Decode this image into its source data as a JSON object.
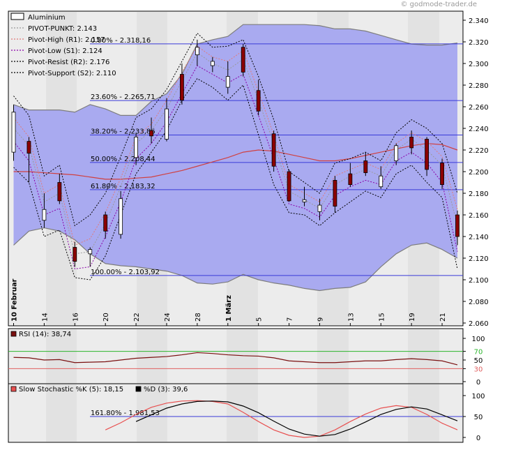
{
  "watermark": "© godmode-trader.de",
  "chart_data": {
    "type": "candlestick",
    "main": {
      "ylim": [
        2.06,
        2.34
      ],
      "yticks": [
        "2.340",
        "2.320",
        "2.300",
        "2.280",
        "2.260",
        "2.240",
        "2.220",
        "2.200",
        "2.180",
        "2.160",
        "2.140",
        "2.120",
        "2.100",
        "2.080",
        "2.060"
      ],
      "xticks": [
        {
          "i": 0,
          "label": "10 Februar"
        },
        {
          "i": 2,
          "label": "14"
        },
        {
          "i": 4,
          "label": "16"
        },
        {
          "i": 6,
          "label": "20"
        },
        {
          "i": 8,
          "label": "22"
        },
        {
          "i": 10,
          "label": "24"
        },
        {
          "i": 12,
          "label": "28"
        },
        {
          "i": 14,
          "label": "1 März"
        },
        {
          "i": 16,
          "label": "5"
        },
        {
          "i": 18,
          "label": "7"
        },
        {
          "i": 20,
          "label": "9"
        },
        {
          "i": 22,
          "label": "13"
        },
        {
          "i": 24,
          "label": "15"
        },
        {
          "i": 26,
          "label": "19"
        },
        {
          "i": 28,
          "label": "21"
        }
      ],
      "legend": [
        {
          "label": "Aluminium",
          "value": "",
          "style": "box",
          "color": "#000000"
        },
        {
          "label": "PIVOT-PUNKT:",
          "value": "2.143",
          "style": "dot",
          "color": "#999999"
        },
        {
          "label": "Pivot-High (R1):",
          "value": "2.157",
          "style": "dot",
          "color": "#e07a7a"
        },
        {
          "label": "Pivot-Low (S1):",
          "value": "2.124",
          "style": "dot",
          "color": "#8a00a8"
        },
        {
          "label": "Pivot-Resist (R2):",
          "value": "2.176",
          "style": "dot",
          "color": "#000000"
        },
        {
          "label": "Pivot-Support (S2):",
          "value": "2.110",
          "style": "dot",
          "color": "#000000"
        }
      ],
      "fib_levels": [
        {
          "label": "0.00% - 2.318,16",
          "value": 2.31816
        },
        {
          "label": "23.60% - 2.265,71",
          "value": 2.26571
        },
        {
          "label": "38.20% - 2.233,86",
          "value": 2.23386
        },
        {
          "label": "50.00% - 2.208,44",
          "value": 2.20844
        },
        {
          "label": "61.80% - 2.183,32",
          "value": 2.18332
        },
        {
          "label": "100.00% - 2.103,92",
          "value": 2.10392
        }
      ],
      "candles": [
        {
          "o": 2.218,
          "h": 2.262,
          "l": 2.21,
          "c": 2.255
        },
        {
          "o": 2.228,
          "h": 2.232,
          "l": 2.19,
          "c": 2.217
        },
        {
          "o": 2.155,
          "h": 2.18,
          "l": 2.148,
          "c": 2.165
        },
        {
          "o": 2.19,
          "h": 2.198,
          "l": 2.17,
          "c": 2.173
        },
        {
          "o": 2.13,
          "h": 2.135,
          "l": 2.112,
          "c": 2.117
        },
        {
          "o": 2.124,
          "h": 2.13,
          "l": 2.112,
          "c": 2.128
        },
        {
          "o": 2.16,
          "h": 2.163,
          "l": 2.138,
          "c": 2.145
        },
        {
          "o": 2.142,
          "h": 2.182,
          "l": 2.138,
          "c": 2.175
        },
        {
          "o": 2.213,
          "h": 2.236,
          "l": 2.206,
          "c": 2.232
        },
        {
          "o": 2.238,
          "h": 2.25,
          "l": 2.226,
          "c": 2.233
        },
        {
          "o": 2.23,
          "h": 2.268,
          "l": 2.228,
          "c": 2.258
        },
        {
          "o": 2.29,
          "h": 2.3,
          "l": 2.262,
          "c": 2.266
        },
        {
          "o": 2.308,
          "h": 2.322,
          "l": 2.298,
          "c": 2.315
        },
        {
          "o": 2.298,
          "h": 2.306,
          "l": 2.292,
          "c": 2.302
        },
        {
          "o": 2.278,
          "h": 2.302,
          "l": 2.272,
          "c": 2.288
        },
        {
          "o": 2.315,
          "h": 2.318,
          "l": 2.288,
          "c": 2.292
        },
        {
          "o": 2.275,
          "h": 2.285,
          "l": 2.252,
          "c": 2.256
        },
        {
          "o": 2.235,
          "h": 2.238,
          "l": 2.2,
          "c": 2.205
        },
        {
          "o": 2.2,
          "h": 2.202,
          "l": 2.172,
          "c": 2.173
        },
        {
          "o": 2.172,
          "h": 2.186,
          "l": 2.168,
          "c": 2.174
        },
        {
          "o": 2.163,
          "h": 2.175,
          "l": 2.155,
          "c": 2.169
        },
        {
          "o": 2.192,
          "h": 2.196,
          "l": 2.162,
          "c": 2.168
        },
        {
          "o": 2.198,
          "h": 2.208,
          "l": 2.186,
          "c": 2.188
        },
        {
          "o": 2.21,
          "h": 2.218,
          "l": 2.196,
          "c": 2.199
        },
        {
          "o": 2.186,
          "h": 2.205,
          "l": 2.184,
          "c": 2.196
        },
        {
          "o": 2.21,
          "h": 2.226,
          "l": 2.206,
          "c": 2.224
        },
        {
          "o": 2.232,
          "h": 2.238,
          "l": 2.216,
          "c": 2.222
        },
        {
          "o": 2.23,
          "h": 2.232,
          "l": 2.196,
          "c": 2.202
        },
        {
          "o": 2.208,
          "h": 2.212,
          "l": 2.184,
          "c": 2.188
        },
        {
          "o": 2.16,
          "h": 2.164,
          "l": 2.132,
          "c": 2.14
        }
      ],
      "pivot_resist": [
        2.27,
        2.252,
        2.196,
        2.206,
        2.15,
        2.16,
        2.18,
        2.214,
        2.25,
        2.258,
        2.276,
        2.302,
        2.328,
        2.315,
        2.316,
        2.322,
        2.288,
        2.248,
        2.2,
        2.19,
        2.18,
        2.208,
        2.212,
        2.218,
        2.21,
        2.236,
        2.248,
        2.24,
        2.226,
        2.18
      ],
      "pivot_high": [
        2.25,
        2.232,
        2.18,
        2.188,
        2.132,
        2.138,
        2.162,
        2.194,
        2.232,
        2.244,
        2.266,
        2.292,
        2.316,
        2.306,
        2.302,
        2.312,
        2.274,
        2.234,
        2.188,
        2.18,
        2.172,
        2.196,
        2.202,
        2.208,
        2.202,
        2.226,
        2.236,
        2.228,
        2.214,
        2.165
      ],
      "pivot_point": [
        2.24,
        2.224,
        2.172,
        2.18,
        2.124,
        2.126,
        2.152,
        2.186,
        2.226,
        2.238,
        2.258,
        2.284,
        2.31,
        2.3,
        2.294,
        2.304,
        2.266,
        2.226,
        2.182,
        2.174,
        2.166,
        2.188,
        2.196,
        2.202,
        2.196,
        2.22,
        2.23,
        2.22,
        2.206,
        2.15
      ],
      "pivot_low": [
        2.228,
        2.21,
        2.16,
        2.166,
        2.11,
        2.112,
        2.14,
        2.172,
        2.212,
        2.226,
        2.246,
        2.272,
        2.298,
        2.29,
        2.282,
        2.29,
        2.252,
        2.212,
        2.17,
        2.166,
        2.158,
        2.178,
        2.186,
        2.192,
        2.188,
        2.21,
        2.218,
        2.208,
        2.19,
        2.126
      ],
      "pivot_support": [
        2.204,
        2.19,
        2.14,
        2.146,
        2.102,
        2.1,
        2.122,
        2.16,
        2.198,
        2.218,
        2.238,
        2.266,
        2.286,
        2.278,
        2.266,
        2.28,
        2.234,
        2.188,
        2.162,
        2.16,
        2.15,
        2.162,
        2.172,
        2.182,
        2.176,
        2.198,
        2.206,
        2.19,
        2.176,
        2.11
      ],
      "bollinger_upper": [
        2.262,
        2.257,
        2.257,
        2.257,
        2.255,
        2.262,
        2.258,
        2.252,
        2.252,
        2.265,
        2.272,
        2.29,
        2.318,
        2.322,
        2.325,
        2.336,
        2.336,
        2.336,
        2.336,
        2.336,
        2.335,
        2.332,
        2.332,
        2.33,
        2.326,
        2.322,
        2.318,
        2.317,
        2.317,
        2.319
      ],
      "bollinger_lower": [
        2.132,
        2.145,
        2.148,
        2.145,
        2.137,
        2.124,
        2.115,
        2.113,
        2.112,
        2.11,
        2.108,
        2.104,
        2.097,
        2.096,
        2.098,
        2.105,
        2.1,
        2.097,
        2.095,
        2.092,
        2.09,
        2.092,
        2.093,
        2.098,
        2.112,
        2.124,
        2.132,
        2.134,
        2.128,
        2.12
      ],
      "sma": [
        2.2,
        2.2,
        2.199,
        2.198,
        2.197,
        2.195,
        2.193,
        2.193,
        2.194,
        2.195,
        2.198,
        2.201,
        2.205,
        2.209,
        2.213,
        2.218,
        2.22,
        2.219,
        2.216,
        2.213,
        2.21,
        2.21,
        2.212,
        2.215,
        2.218,
        2.221,
        2.224,
        2.226,
        2.225,
        2.22
      ]
    },
    "rsi": {
      "title": "RSI (14): 38,74",
      "ylim": [
        0,
        100
      ],
      "yticks": [
        {
          "v": 100,
          "label": "100",
          "color": "#000000"
        },
        {
          "v": 70,
          "label": "70",
          "color": "#2bb52b"
        },
        {
          "v": 50,
          "label": "50",
          "color": "#000000"
        },
        {
          "v": 30,
          "label": "30",
          "color": "#e06060"
        },
        {
          "v": 0,
          "label": "0",
          "color": "#000000"
        }
      ],
      "values": [
        56,
        55,
        50,
        51,
        44,
        45,
        46,
        50,
        54,
        56,
        58,
        62,
        67,
        65,
        62,
        60,
        59,
        55,
        48,
        46,
        44,
        44,
        46,
        48,
        48,
        51,
        53,
        51,
        48,
        38.74
      ]
    },
    "stoch": {
      "title_k": "Slow Stochastic %K (5): 18,15",
      "title_d": "%D (3): 39,6",
      "fib_label": "161.80% - 1.981,53",
      "fib_value": 50,
      "ylim": [
        0,
        100
      ],
      "yticks": [
        "100",
        "50",
        "0"
      ],
      "k": [
        null,
        null,
        null,
        null,
        null,
        null,
        18,
        35,
        55,
        72,
        82,
        87,
        88,
        86,
        80,
        60,
        38,
        18,
        5,
        0,
        3,
        18,
        38,
        56,
        70,
        76,
        72,
        55,
        34,
        18.15
      ],
      "d": [
        null,
        null,
        null,
        null,
        null,
        null,
        null,
        null,
        38,
        54,
        70,
        80,
        86,
        87,
        85,
        75,
        59,
        39,
        20,
        8,
        3,
        7,
        20,
        37,
        55,
        67,
        73,
        68,
        54,
        39.6
      ]
    }
  }
}
